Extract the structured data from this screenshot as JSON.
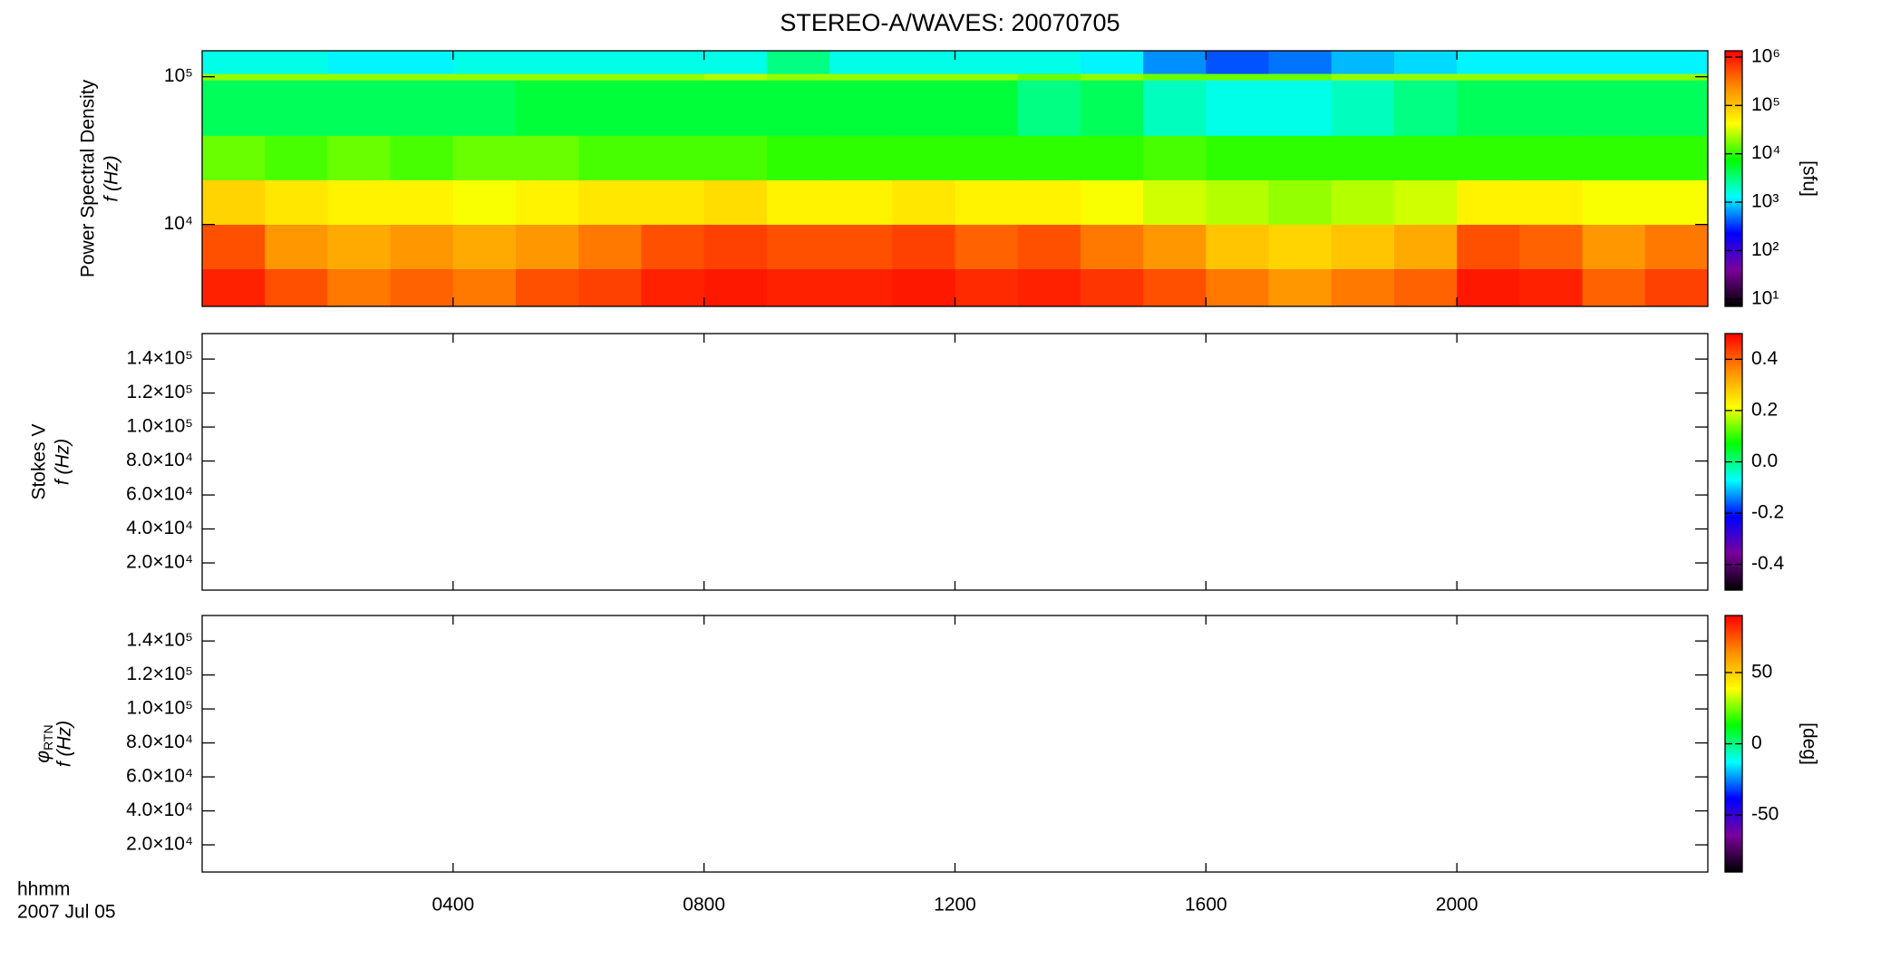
{
  "chart_data": [
    {
      "type": "heatmap",
      "title": "STEREO-A/WAVES: 20070705",
      "ylabel": "Power Spectral Density",
      "ylabel2": "f (Hz)",
      "ylog": true,
      "ylim": [
        2790,
        150000
      ],
      "yticks": [
        {
          "value": 10000,
          "label": "10⁴"
        },
        {
          "value": 100000,
          "label": "10⁵"
        }
      ],
      "x_bins": [
        0,
        1,
        2,
        3,
        4,
        5,
        6,
        7,
        8,
        9,
        10,
        11,
        12,
        13,
        14,
        15,
        16,
        17,
        18,
        19,
        20,
        21,
        22,
        23,
        24
      ],
      "freq_bins": [
        2790,
        5000,
        10000,
        20000,
        40000,
        95000,
        105000,
        150000
      ],
      "z": [
        [
          900000,
          500000,
          300000,
          400000,
          300000,
          500000,
          600000,
          900000,
          1000000,
          900000,
          900000,
          1000000,
          800000,
          900000,
          700000,
          500000,
          300000,
          200000,
          300000,
          400000,
          1000000,
          900000,
          400000,
          600000
        ],
        [
          500000,
          200000,
          150000,
          200000,
          150000,
          200000,
          300000,
          500000,
          600000,
          500000,
          500000,
          600000,
          400000,
          500000,
          300000,
          200000,
          100000,
          80000,
          100000,
          150000,
          500000,
          400000,
          200000,
          300000
        ],
        [
          80000,
          60000,
          50000,
          50000,
          40000,
          50000,
          60000,
          60000,
          70000,
          50000,
          50000,
          60000,
          50000,
          50000,
          40000,
          30000,
          25000,
          20000,
          25000,
          30000,
          50000,
          50000,
          40000,
          40000
        ],
        [
          15000,
          12000,
          15000,
          12000,
          15000,
          15000,
          12000,
          12000,
          12000,
          10000,
          10000,
          10000,
          10000,
          10000,
          10000,
          12000,
          10000,
          10000,
          10000,
          10000,
          10000,
          10000,
          10000,
          10000
        ],
        [
          4000,
          4000,
          4000,
          4000,
          4000,
          5000,
          5000,
          5000,
          5000,
          5000,
          5000,
          5000,
          5000,
          3000,
          4000,
          2000,
          1500,
          1500,
          2000,
          3000,
          4000,
          4000,
          4000,
          4000
        ],
        [
          20000,
          20000,
          20000,
          20000,
          20000,
          20000,
          20000,
          20000,
          25000,
          20000,
          20000,
          20000,
          20000,
          15000,
          20000,
          15000,
          15000,
          15000,
          20000,
          20000,
          20000,
          20000,
          20000,
          20000
        ],
        [
          1500,
          1500,
          1200,
          1200,
          1500,
          1500,
          1500,
          1500,
          1500,
          3000,
          1500,
          1500,
          1500,
          1500,
          1200,
          600,
          400,
          500,
          800,
          1000,
          1200,
          1200,
          1200,
          1200
        ]
      ],
      "colormap": [
        "#000000",
        "#7a009c",
        "#0000ff",
        "#00ffff",
        "#00ff00",
        "#ffff00",
        "#ff8c00",
        "#ff0000"
      ],
      "clog": true,
      "clim": [
        7,
        1350000
      ],
      "cticks": [
        {
          "value": 10,
          "label": "10¹"
        },
        {
          "value": 100,
          "label": "10²"
        },
        {
          "value": 1000,
          "label": "10³"
        },
        {
          "value": 10000,
          "label": "10⁴"
        },
        {
          "value": 100000,
          "label": "10⁵"
        },
        {
          "value": 1000000,
          "label": "10⁶"
        }
      ],
      "clabel": "[sfu]"
    },
    {
      "type": "heatmap",
      "ylabel": "Stokes V",
      "ylabel2": "f (Hz)",
      "ylim": [
        4000,
        155000
      ],
      "yticks": [
        {
          "value": 20000,
          "label": "2.0×10⁴"
        },
        {
          "value": 40000,
          "label": "4.0×10⁴"
        },
        {
          "value": 60000,
          "label": "6.0×10⁴"
        },
        {
          "value": 80000,
          "label": "8.0×10⁴"
        },
        {
          "value": 100000,
          "label": "1.0×10⁵"
        },
        {
          "value": 120000,
          "label": "1.2×10⁵"
        },
        {
          "value": 140000,
          "label": "1.4×10⁵"
        }
      ],
      "colormap": [
        "#000000",
        "#7a009c",
        "#0000ff",
        "#00ffff",
        "#00ff00",
        "#ffff00",
        "#ff8c00",
        "#ff0000"
      ],
      "clim": [
        -0.5,
        0.5
      ],
      "cticks": [
        -0.4,
        -0.2,
        {
          "value": 0,
          "label": "0.0"
        },
        0.2,
        0.4
      ]
    },
    {
      "type": "heatmap",
      "ylabel_symbol": "φ",
      "ylabel_subscript": "RTN",
      "ylabel2": "f (Hz)",
      "ylim": [
        4000,
        155000
      ],
      "yticks": [
        {
          "value": 20000,
          "label": "2.0×10⁴"
        },
        {
          "value": 40000,
          "label": "4.0×10⁴"
        },
        {
          "value": 60000,
          "label": "6.0×10⁴"
        },
        {
          "value": 80000,
          "label": "8.0×10⁴"
        },
        {
          "value": 100000,
          "label": "1.0×10⁵"
        },
        {
          "value": 120000,
          "label": "1.2×10⁵"
        },
        {
          "value": 140000,
          "label": "1.4×10⁵"
        }
      ],
      "colormap": [
        "#000000",
        "#7a009c",
        "#0000ff",
        "#00ffff",
        "#00ff00",
        "#ffff00",
        "#ff8c00",
        "#ff0000"
      ],
      "clim": [
        -90,
        90
      ],
      "cticks": [
        -50,
        0,
        50
      ],
      "clabel": "[deg]",
      "xlim": [
        0,
        24
      ],
      "xticks": [
        {
          "value": 4,
          "label": "0400"
        },
        {
          "value": 8,
          "label": "0800"
        },
        {
          "value": 12,
          "label": "1200"
        },
        {
          "value": 16,
          "label": "1600"
        },
        {
          "value": 20,
          "label": "2000"
        }
      ],
      "xlabel": "hhmm",
      "date_label": "2007 Jul 05"
    }
  ]
}
